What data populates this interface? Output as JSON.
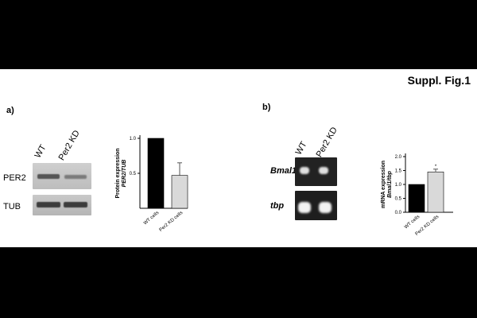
{
  "figure_title": "Suppl. Fig.1",
  "panel_a": {
    "label": "a)",
    "lanes": [
      "WT",
      "Per2 KD"
    ],
    "rows": [
      "PER2",
      "TUB"
    ]
  },
  "panel_b": {
    "label": "b)",
    "lanes": [
      "WT",
      "Per2 KD"
    ],
    "rows": [
      "Bmal1",
      "tbp"
    ]
  },
  "chart_data": [
    {
      "type": "bar",
      "categories": [
        "WT cells",
        "Per2 KD cells"
      ],
      "values": [
        1.0,
        0.47
      ],
      "errors": [
        0,
        0.18
      ],
      "ylabel_line1": "Protein expression",
      "ylabel_line2": "PER2/TUB",
      "ylim": [
        0,
        1.0
      ],
      "yticks": [
        "0.5",
        "1.0"
      ],
      "ytick_values": [
        0.5,
        1.0
      ],
      "colors": [
        "#000000",
        "#d9d9d9"
      ],
      "annotations": []
    },
    {
      "type": "bar",
      "categories": [
        "WT cells",
        "Per2 KD cells"
      ],
      "values": [
        1.0,
        1.45
      ],
      "errors": [
        0,
        0.1
      ],
      "ylabel_line1": "mRNA expression",
      "ylabel_line2": "Bmal1/tbp",
      "ylim": [
        0,
        2.0
      ],
      "yticks": [
        "0.0",
        "0.5",
        "1.0",
        "1.5",
        "2.0"
      ],
      "ytick_values": [
        0.0,
        0.5,
        1.0,
        1.5,
        2.0
      ],
      "colors": [
        "#000000",
        "#d9d9d9"
      ],
      "annotations": [
        "*"
      ]
    }
  ]
}
